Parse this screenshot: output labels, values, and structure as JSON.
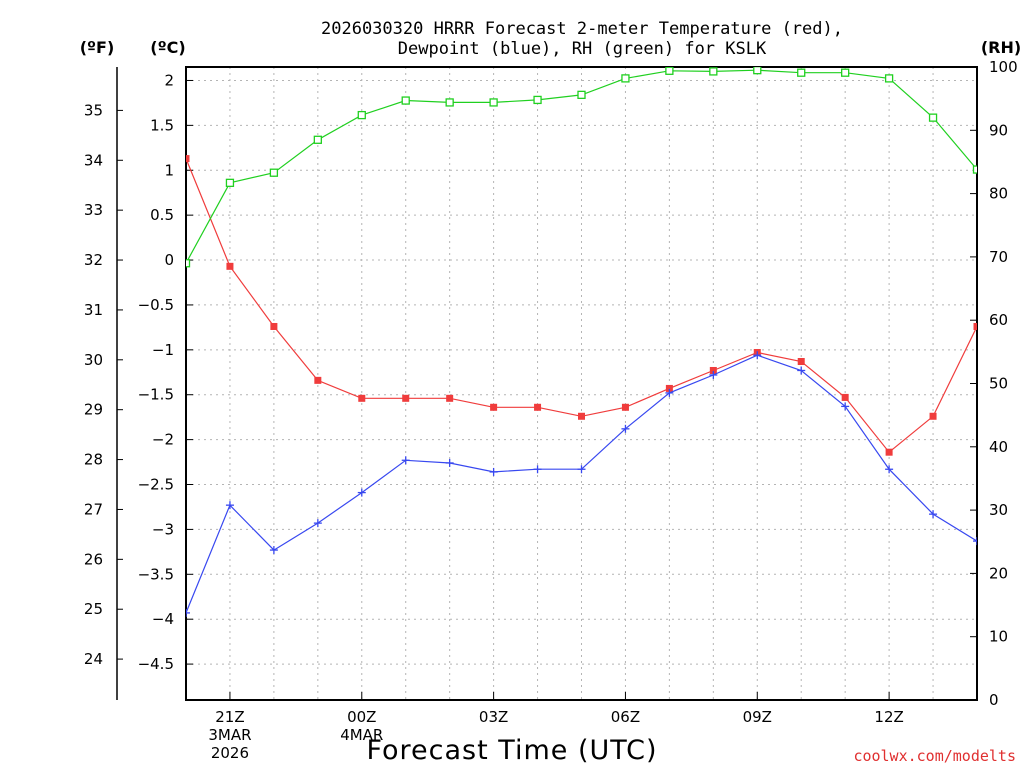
{
  "chart_data": {
    "type": "line",
    "title_line1": "2026030320 HRRR Forecast 2-meter Temperature (red),",
    "title_line2": "Dewpoint (blue), RH (green) for KSLK",
    "xlabel": "Forecast Time (UTC)",
    "credit": "coolwx.com/modelts",
    "unit_labels": {
      "fahrenheit": "(ºF)",
      "celsius": "(ºC)",
      "rh": "(RH)"
    },
    "x_hours": [
      20,
      21,
      22,
      23,
      24,
      25,
      26,
      27,
      28,
      29,
      30,
      31,
      32,
      33,
      34,
      35,
      36,
      37,
      38
    ],
    "xlim": [
      20,
      38
    ],
    "x_ticks": [
      {
        "hour": 21,
        "label": "21Z",
        "sub1": "3MAR",
        "sub2": "2026"
      },
      {
        "hour": 24,
        "label": "00Z",
        "sub1": "4MAR",
        "sub2": ""
      },
      {
        "hour": 27,
        "label": "03Z",
        "sub1": "",
        "sub2": ""
      },
      {
        "hour": 30,
        "label": "06Z",
        "sub1": "",
        "sub2": ""
      },
      {
        "hour": 33,
        "label": "09Z",
        "sub1": "",
        "sub2": ""
      },
      {
        "hour": 36,
        "label": "12Z",
        "sub1": "",
        "sub2": ""
      }
    ],
    "y_celsius": {
      "range": [
        -4.9,
        2.15
      ],
      "ticks": [
        2,
        1.5,
        1,
        0.5,
        0,
        -0.5,
        -1,
        -1.5,
        -2,
        -2.5,
        -3,
        -3.5,
        -4,
        -4.5
      ],
      "tick_labels": [
        "2",
        "1.5",
        "1",
        "0.5",
        "0",
        "−0.5",
        "−1",
        "−1.5",
        "−2",
        "−2.5",
        "−3",
        "−3.5",
        "−4",
        "−4.5"
      ]
    },
    "y_fahrenheit": {
      "ticks": [
        35,
        34,
        33,
        32,
        31,
        30,
        29,
        28,
        27,
        26,
        25,
        24
      ],
      "tick_labels": [
        "35",
        "34",
        "33",
        "32",
        "31",
        "30",
        "29",
        "28",
        "27",
        "26",
        "25",
        "24"
      ]
    },
    "y_rh": {
      "range": [
        0,
        100
      ],
      "ticks": [
        100,
        90,
        80,
        70,
        60,
        50,
        40,
        30,
        20,
        10,
        0
      ],
      "tick_labels": [
        "100",
        "90",
        "80",
        "70",
        "60",
        "50",
        "40",
        "30",
        "20",
        "10",
        "0"
      ]
    },
    "series": [
      {
        "name": "Temperature",
        "axis": "celsius",
        "color": "#f03c3c",
        "marker": "filled-square",
        "values": [
          1.13,
          -0.07,
          -0.74,
          -1.34,
          -1.54,
          -1.54,
          -1.54,
          -1.64,
          -1.64,
          -1.74,
          -1.64,
          -1.43,
          -1.23,
          -1.03,
          -1.13,
          -1.53,
          -2.14,
          -1.74,
          -0.74
        ]
      },
      {
        "name": "Dewpoint",
        "axis": "celsius",
        "color": "#3848f0",
        "marker": "plus",
        "values": [
          -3.93,
          -2.73,
          -3.23,
          -2.93,
          -2.59,
          -2.23,
          -2.26,
          -2.36,
          -2.33,
          -2.33,
          -1.88,
          -1.48,
          -1.28,
          -1.06,
          -1.23,
          -1.63,
          -2.33,
          -2.83,
          -3.13
        ]
      },
      {
        "name": "RH",
        "axis": "rh",
        "color": "#20d020",
        "marker": "open-square",
        "values": [
          69,
          81.7,
          83.3,
          88.5,
          92.4,
          94.7,
          94.4,
          94.4,
          94.8,
          95.6,
          98.2,
          99.4,
          99.3,
          99.5,
          99.1,
          99.1,
          98.2,
          92,
          83.8
        ]
      }
    ]
  }
}
